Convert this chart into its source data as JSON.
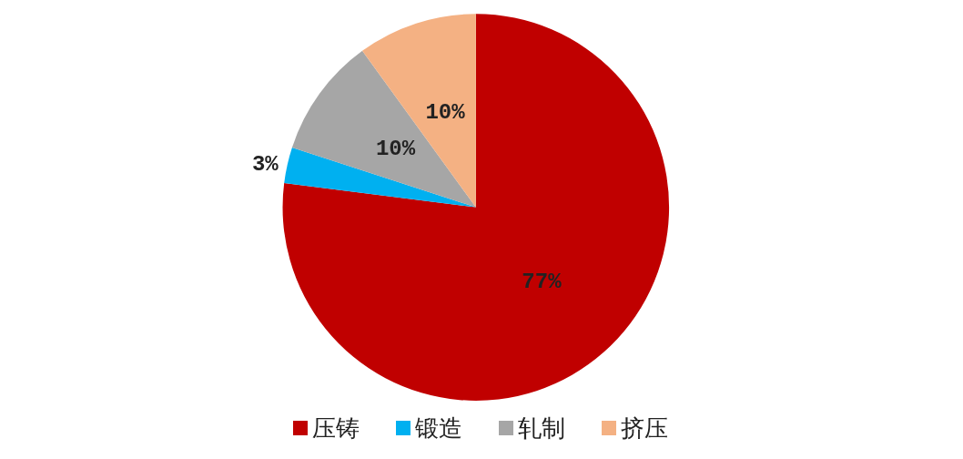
{
  "chart_data": {
    "type": "pie",
    "categories": [
      "压铸",
      "锻造",
      "轧制",
      "挤压"
    ],
    "values": [
      77,
      3,
      10,
      10
    ],
    "colors": [
      "#c00000",
      "#00b0f0",
      "#a6a6a6",
      "#f4b183"
    ],
    "value_labels": [
      "77%",
      "3%",
      "10%",
      "10%"
    ],
    "legend": "bottom"
  }
}
